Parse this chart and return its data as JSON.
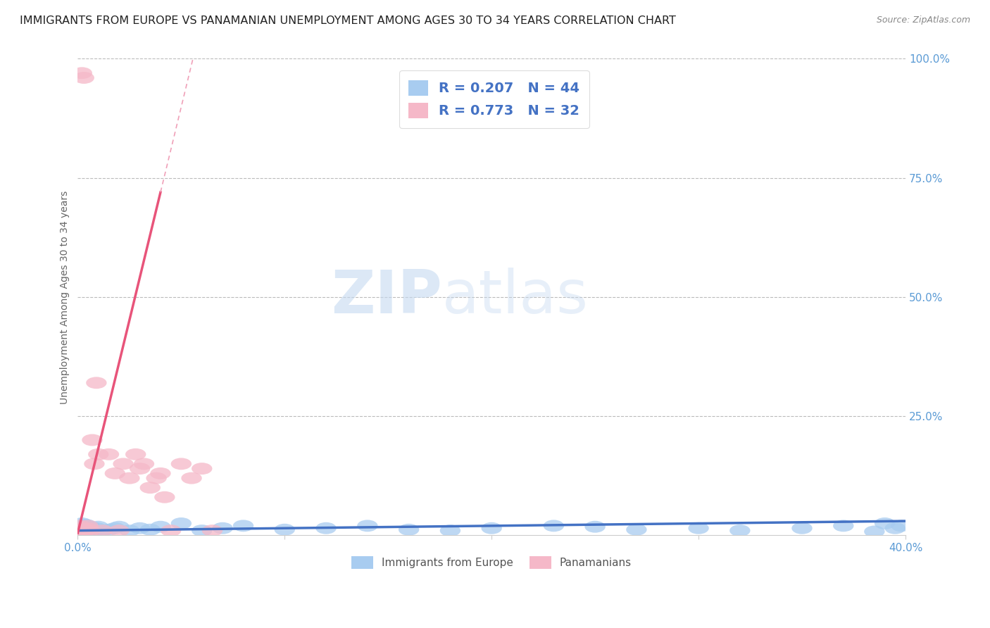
{
  "title": "IMMIGRANTS FROM EUROPE VS PANAMANIAN UNEMPLOYMENT AMONG AGES 30 TO 34 YEARS CORRELATION CHART",
  "source": "Source: ZipAtlas.com",
  "ylabel": "Unemployment Among Ages 30 to 34 years",
  "xlim": [
    0.0,
    0.4
  ],
  "ylim": [
    0.0,
    1.0
  ],
  "blue_color": "#A8CCF0",
  "pink_color": "#F5B8C8",
  "blue_line_color": "#4472C4",
  "pink_line_color": "#E8547A",
  "pink_dash_color": "#F0A0B8",
  "blue_R": 0.207,
  "blue_N": 44,
  "pink_R": 0.773,
  "pink_N": 32,
  "watermark_zip": "ZIP",
  "watermark_atlas": "atlas",
  "legend_label_blue": "Immigrants from Europe",
  "legend_label_pink": "Panamanians",
  "blue_scatter_x": [
    0.001,
    0.001,
    0.002,
    0.002,
    0.003,
    0.003,
    0.004,
    0.004,
    0.005,
    0.005,
    0.006,
    0.007,
    0.008,
    0.009,
    0.01,
    0.012,
    0.015,
    0.018,
    0.02,
    0.025,
    0.03,
    0.035,
    0.04,
    0.05,
    0.06,
    0.07,
    0.08,
    0.1,
    0.12,
    0.14,
    0.16,
    0.18,
    0.2,
    0.23,
    0.25,
    0.27,
    0.3,
    0.32,
    0.35,
    0.37,
    0.385,
    0.39,
    0.395,
    0.398
  ],
  "blue_scatter_y": [
    0.01,
    0.02,
    0.015,
    0.025,
    0.008,
    0.018,
    0.012,
    0.022,
    0.01,
    0.015,
    0.018,
    0.012,
    0.008,
    0.015,
    0.018,
    0.01,
    0.012,
    0.015,
    0.018,
    0.01,
    0.015,
    0.012,
    0.018,
    0.025,
    0.01,
    0.015,
    0.02,
    0.012,
    0.015,
    0.02,
    0.012,
    0.01,
    0.015,
    0.02,
    0.018,
    0.012,
    0.015,
    0.01,
    0.015,
    0.02,
    0.008,
    0.025,
    0.015,
    0.02
  ],
  "pink_scatter_x": [
    0.001,
    0.001,
    0.002,
    0.002,
    0.003,
    0.003,
    0.004,
    0.005,
    0.005,
    0.006,
    0.007,
    0.008,
    0.009,
    0.01,
    0.012,
    0.015,
    0.018,
    0.02,
    0.022,
    0.025,
    0.028,
    0.03,
    0.032,
    0.035,
    0.038,
    0.04,
    0.042,
    0.045,
    0.05,
    0.055,
    0.06,
    0.065
  ],
  "pink_scatter_y": [
    0.01,
    0.02,
    0.015,
    0.97,
    0.01,
    0.96,
    0.01,
    0.02,
    0.015,
    0.01,
    0.2,
    0.15,
    0.32,
    0.17,
    0.01,
    0.17,
    0.13,
    0.01,
    0.15,
    0.12,
    0.17,
    0.14,
    0.15,
    0.1,
    0.12,
    0.13,
    0.08,
    0.01,
    0.15,
    0.12,
    0.14,
    0.01
  ],
  "background_color": "#FFFFFF",
  "grid_color": "#BBBBBB",
  "title_color": "#222222",
  "axis_color": "#5B9BD5",
  "title_fontsize": 11.5,
  "label_fontsize": 10,
  "tick_fontsize": 11
}
